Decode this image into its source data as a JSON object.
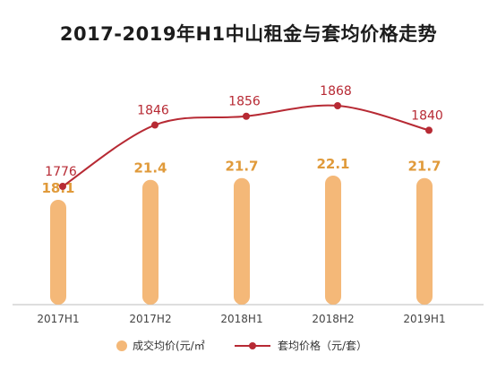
{
  "title": "2017-2019年H1中山租金与套均价格走势",
  "colors": {
    "bar": "#f4b878",
    "bar_label": "#e09a3a",
    "line": "#b72a34",
    "axis": "#bdbdbd",
    "tick": "#444444"
  },
  "legend": {
    "rent_label": "成交均价(元/㎡",
    "price_label": "套均价格（元/套）"
  },
  "chart_data": {
    "type": "bar+line",
    "categories": [
      "2017H1",
      "2017H2",
      "2018H1",
      "2018H2",
      "2019H1"
    ],
    "series": [
      {
        "name": "成交均价(元/㎡",
        "type": "bar",
        "values": [
          18.1,
          21.4,
          21.7,
          22.1,
          21.7
        ]
      },
      {
        "name": "套均价格（元/套）",
        "type": "line",
        "values": [
          1776,
          1846,
          1856,
          1868,
          1840
        ]
      }
    ]
  }
}
